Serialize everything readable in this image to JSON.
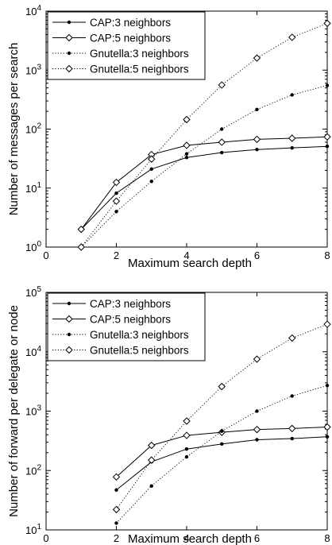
{
  "chart_data": [
    {
      "type": "line",
      "xlabel": "Maximum search depth",
      "ylabel": "Number of messages per search",
      "xscale": "linear",
      "yscale": "log",
      "xlim": [
        0,
        8
      ],
      "ylim_exp": [
        0,
        4
      ],
      "xticks": [
        "0",
        "2",
        "4",
        "6",
        "8"
      ],
      "yticks": [
        {
          "base": "10",
          "exp": "0"
        },
        {
          "base": "10",
          "exp": "1"
        },
        {
          "base": "10",
          "exp": "2"
        },
        {
          "base": "10",
          "exp": "3"
        },
        {
          "base": "10",
          "exp": "4"
        }
      ],
      "legend_position": "top-left",
      "series": [
        {
          "name": "CAP:3 neighbors",
          "line": "solid",
          "marker": "dot",
          "x": [
            1,
            2,
            3,
            4,
            5,
            6,
            7,
            8
          ],
          "y": [
            2,
            8.2,
            21,
            33,
            40,
            45,
            48,
            51
          ]
        },
        {
          "name": "CAP:5 neighbors",
          "line": "solid",
          "marker": "diamond",
          "x": [
            1,
            2,
            3,
            4,
            5,
            6,
            7,
            8
          ],
          "y": [
            2,
            12.5,
            37,
            53,
            60,
            67,
            70,
            74
          ]
        },
        {
          "name": "Gnutella:3 neighbors",
          "line": "dotted",
          "marker": "dot",
          "x": [
            1,
            2,
            3,
            4,
            5,
            6,
            7,
            8
          ],
          "y": [
            1,
            4,
            13,
            38,
            100,
            215,
            380,
            550
          ]
        },
        {
          "name": "Gnutella:5 neighbors",
          "line": "dotted",
          "marker": "diamond",
          "x": [
            1,
            2,
            3,
            4,
            5,
            6,
            7,
            8
          ],
          "y": [
            1,
            6,
            31,
            145,
            560,
            1600,
            3600,
            6200
          ]
        }
      ]
    },
    {
      "type": "line",
      "xlabel": "Maximum search depth",
      "ylabel": "Number of forward per delegate or node",
      "xscale": "linear",
      "yscale": "log",
      "xlim": [
        0,
        8
      ],
      "ylim_exp": [
        1,
        5
      ],
      "xticks": [
        "0",
        "2",
        "4",
        "6",
        "8"
      ],
      "yticks": [
        {
          "base": "10",
          "exp": "1"
        },
        {
          "base": "10",
          "exp": "2"
        },
        {
          "base": "10",
          "exp": "3"
        },
        {
          "base": "10",
          "exp": "4"
        },
        {
          "base": "10",
          "exp": "5"
        }
      ],
      "legend_position": "top-left",
      "series": [
        {
          "name": "CAP:3 neighbors",
          "line": "solid",
          "marker": "dot",
          "x": [
            2,
            3,
            4,
            5,
            6,
            7,
            8
          ],
          "y": [
            47,
            140,
            230,
            280,
            330,
            345,
            370
          ]
        },
        {
          "name": "CAP:5 neighbors",
          "line": "solid",
          "marker": "diamond",
          "x": [
            2,
            3,
            4,
            5,
            6,
            7,
            8
          ],
          "y": [
            78,
            265,
            390,
            440,
            490,
            510,
            540
          ]
        },
        {
          "name": "Gnutella:3 neighbors",
          "line": "dotted",
          "marker": "dot",
          "x": [
            2,
            3,
            4,
            5,
            6,
            7,
            8
          ],
          "y": [
            13,
            55,
            170,
            460,
            1000,
            1800,
            2700
          ]
        },
        {
          "name": "Gnutella:5 neighbors",
          "line": "dotted",
          "marker": "diamond",
          "x": [
            2,
            3,
            4,
            5,
            6,
            7,
            8
          ],
          "y": [
            22,
            150,
            680,
            2600,
            7500,
            17000,
            29000
          ]
        }
      ]
    }
  ]
}
